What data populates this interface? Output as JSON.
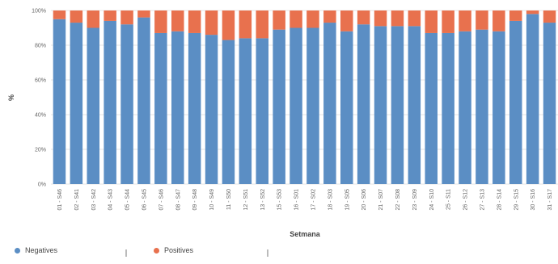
{
  "chart_data": {
    "type": "bar",
    "stacked": true,
    "xlabel": "Setmana",
    "ylabel": "%",
    "ylim": [
      0,
      100
    ],
    "yticks": [
      "0%",
      "20%",
      "40%",
      "60%",
      "80%",
      "100%"
    ],
    "grid": true,
    "legend_position": "bottom",
    "categories": [
      "01 - S46",
      "02 - S41",
      "03 - S42",
      "04 - S43",
      "05 - S44",
      "06 - S45",
      "07 - S46",
      "08 - S47",
      "09 - S48",
      "10 - S49",
      "11 - S50",
      "12 - S51",
      "13 - S52",
      "15 - S53",
      "16 - S01",
      "17 - S02",
      "18 - S03",
      "19 - S05",
      "20 - S06",
      "21 - S07",
      "22 - S08",
      "23 - S09",
      "24 - S10",
      "25 - S11",
      "26 - S12",
      "27 - S13",
      "28 - S14",
      "29 - S15",
      "30 - S16",
      "31 - S17"
    ],
    "series": [
      {
        "name": "Negatives",
        "color": "#5b8ec4",
        "values": [
          95,
          93,
          90,
          94,
          92,
          96,
          87,
          88,
          87,
          86,
          83,
          84,
          84,
          89,
          90,
          90,
          93,
          88,
          92,
          91,
          91,
          91,
          87,
          87,
          88,
          89,
          88,
          94,
          98,
          93
        ]
      },
      {
        "name": "Positives",
        "color": "#e8714e",
        "values": [
          5,
          7,
          10,
          6,
          8,
          4,
          13,
          12,
          13,
          14,
          17,
          16,
          16,
          11,
          10,
          10,
          7,
          12,
          8,
          9,
          9,
          9,
          13,
          13,
          12,
          11,
          12,
          6,
          2,
          7
        ]
      }
    ]
  }
}
